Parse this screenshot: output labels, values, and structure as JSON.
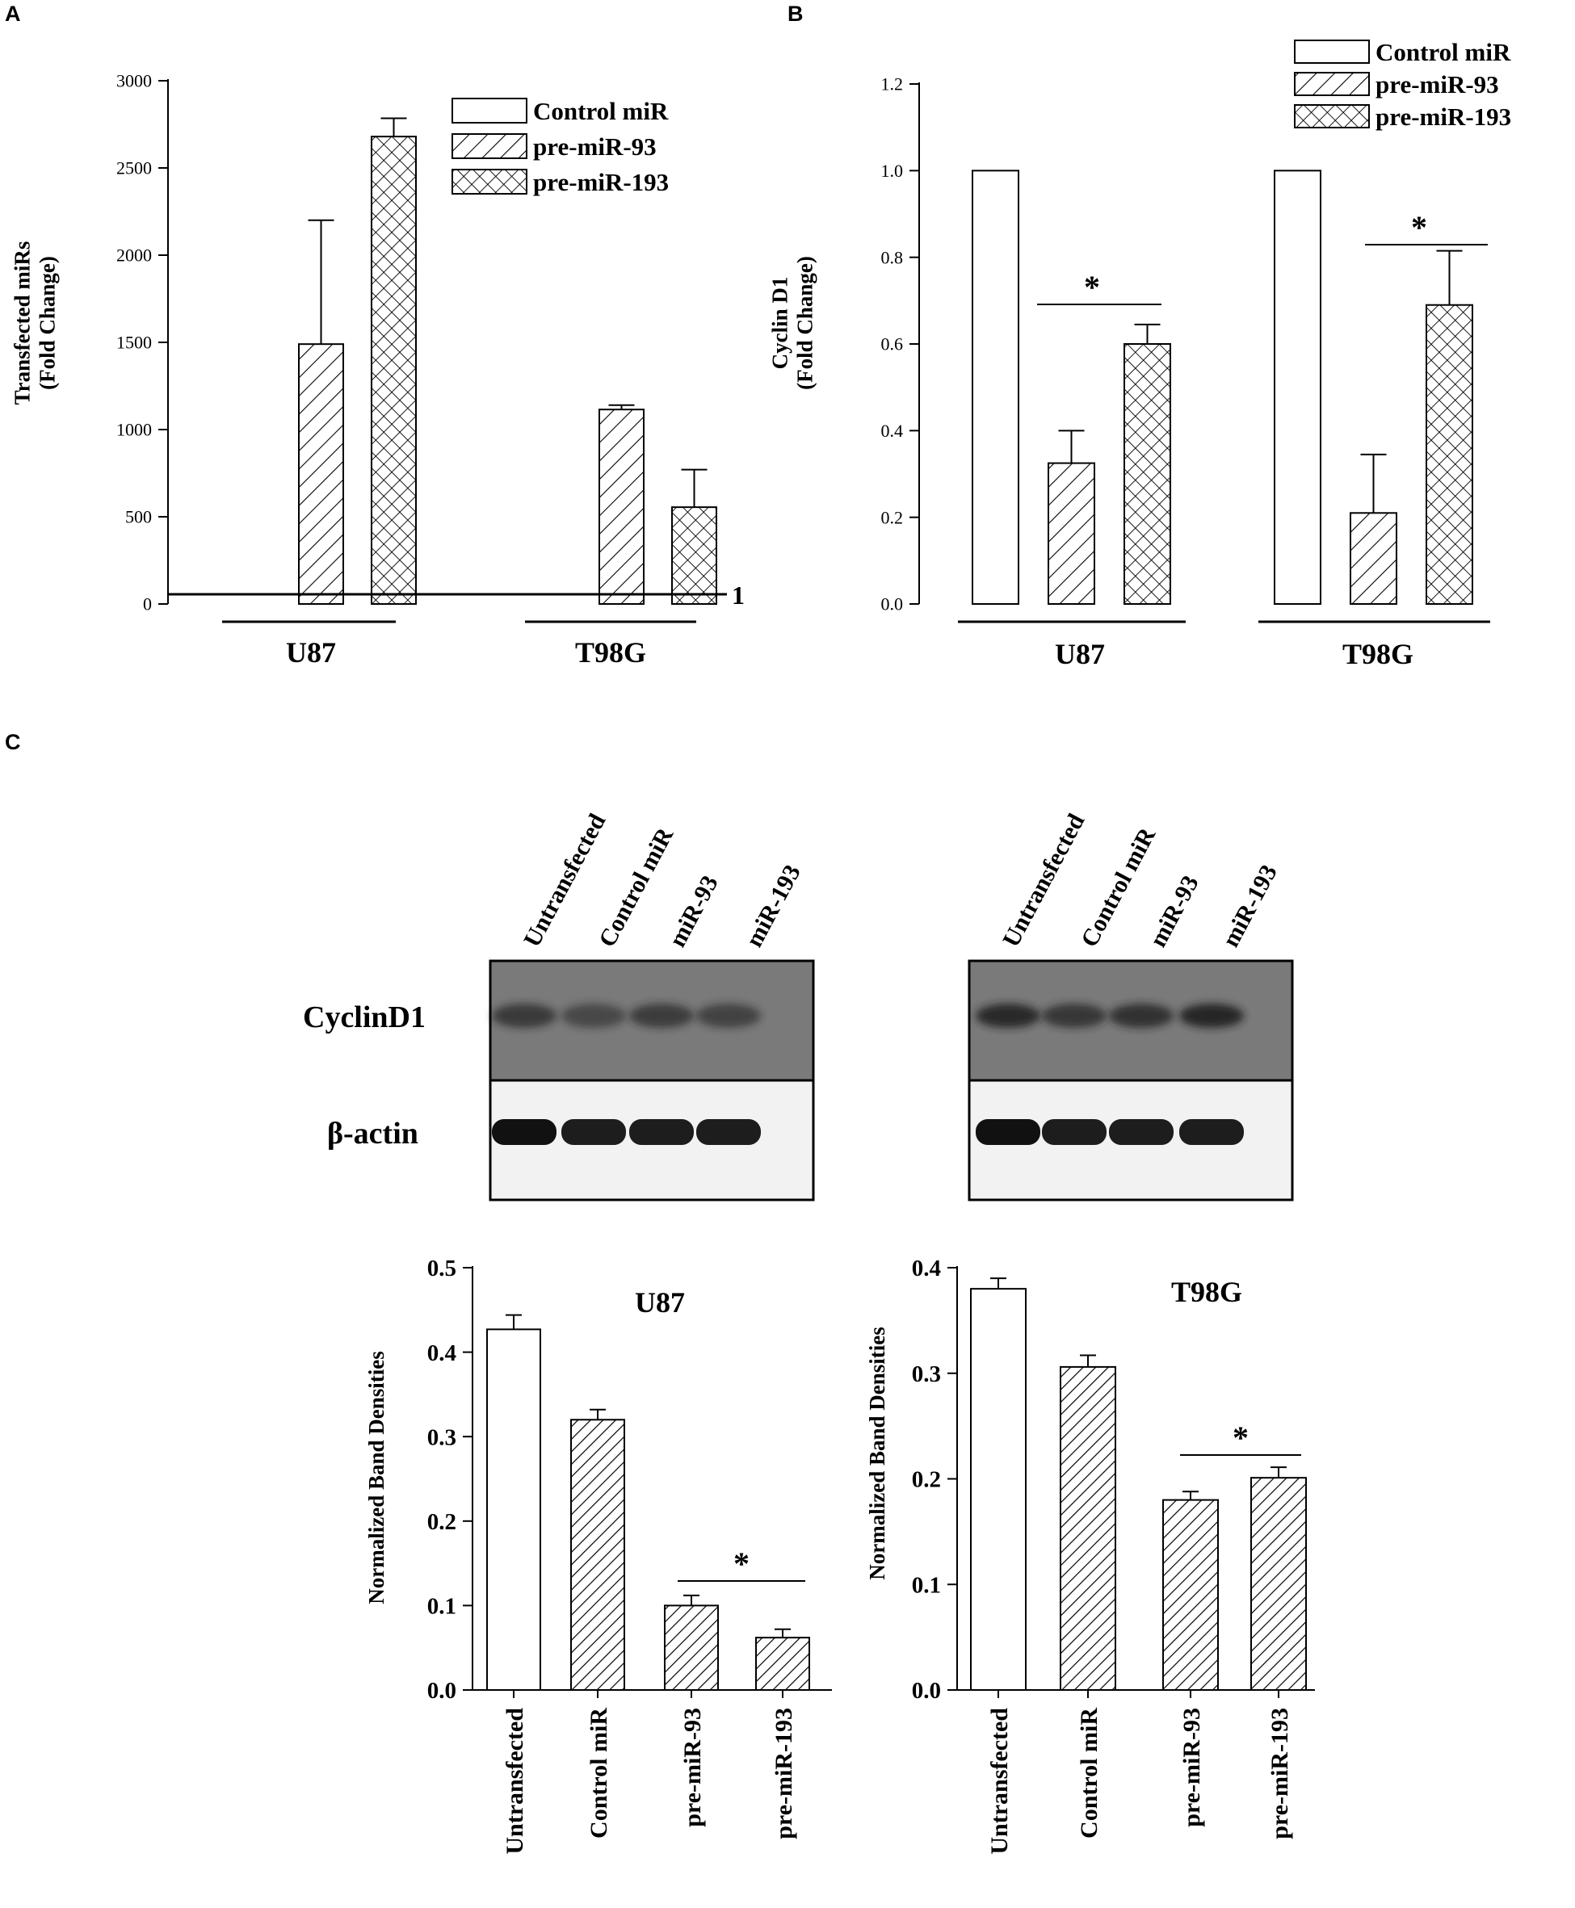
{
  "panel_labels": [
    "A",
    "B",
    "C"
  ],
  "legend": {
    "control": "Control miR",
    "mir93": "pre-miR-93",
    "mir193": "pre-miR-193"
  },
  "colors": {
    "ink": "#000000",
    "bar_fill": "#ffffff",
    "blot_bg": "#7a7a7a",
    "blot_band": "#1c1c1c",
    "actin_bg": "#f2f2f2",
    "actin_band": "#111111"
  },
  "chart_data": [
    {
      "id": "A",
      "type": "bar",
      "ylabel": [
        "Transfected miRs",
        "(Fold Change)"
      ],
      "ylim": [
        0,
        3000
      ],
      "yticks": [
        "0",
        "500",
        "1000",
        "1500",
        "2000",
        "2500",
        "3000"
      ],
      "groups": [
        "U87",
        "T98G"
      ],
      "baseline_label": "1",
      "baseline_value": 1,
      "series": [
        {
          "name": "Control miR",
          "pattern": "none",
          "values": [
            1,
            1
          ],
          "errors": [
            0,
            0
          ]
        },
        {
          "name": "pre-miR-93",
          "pattern": "hatch",
          "values": [
            1490,
            1115
          ],
          "errors": [
            710,
            25
          ]
        },
        {
          "name": "pre-miR-193",
          "pattern": "cross",
          "values": [
            2680,
            555
          ],
          "errors": [
            105,
            215
          ]
        }
      ],
      "legend_position": "top-right",
      "grid": false
    },
    {
      "id": "B",
      "type": "bar",
      "ylabel": [
        "Cyclin D1",
        "(Fold Change)"
      ],
      "ylim": [
        0,
        1.2
      ],
      "yticks": [
        "0.0",
        "0.2",
        "0.4",
        "0.6",
        "0.8",
        "1.0",
        "1.2"
      ],
      "groups": [
        "U87",
        "T98G"
      ],
      "series": [
        {
          "name": "Control miR",
          "pattern": "none",
          "values": [
            1.0,
            1.0
          ],
          "errors": [
            0,
            0
          ]
        },
        {
          "name": "pre-miR-93",
          "pattern": "hatch",
          "values": [
            0.325,
            0.21
          ],
          "errors": [
            0.075,
            0.135
          ]
        },
        {
          "name": "pre-miR-193",
          "pattern": "cross",
          "values": [
            0.6,
            0.69
          ],
          "errors": [
            0.045,
            0.125
          ]
        }
      ],
      "significance": [
        "*",
        "*"
      ],
      "legend_position": "top-right",
      "grid": false
    },
    {
      "id": "C-U87",
      "type": "bar",
      "title": "U87",
      "ylabel": [
        "Normalized Band Densities"
      ],
      "ylim": [
        0,
        0.5
      ],
      "yticks": [
        "0.0",
        "0.1",
        "0.2",
        "0.3",
        "0.4",
        "0.5"
      ],
      "categories": [
        "Untransfected",
        "Control miR",
        "pre-miR-93",
        "pre-miR-193"
      ],
      "patterns": [
        "none",
        "hatch",
        "hatch",
        "hatch"
      ],
      "values": [
        0.427,
        0.32,
        0.1,
        0.062
      ],
      "errors": [
        0.017,
        0.012,
        0.012,
        0.01
      ],
      "significance": "*",
      "grid": false
    },
    {
      "id": "C-T98G",
      "type": "bar",
      "title": "T98G",
      "ylabel": [
        "Normalized Band Densities"
      ],
      "ylim": [
        0,
        0.4
      ],
      "yticks": [
        "0.0",
        "0.1",
        "0.2",
        "0.3",
        "0.4"
      ],
      "categories": [
        "Untransfected",
        "Control miR",
        "pre-miR-93",
        "pre-miR-193"
      ],
      "patterns": [
        "none",
        "hatch",
        "hatch",
        "hatch"
      ],
      "values": [
        0.38,
        0.306,
        0.18,
        0.201
      ],
      "errors": [
        0.01,
        0.011,
        0.008,
        0.01
      ],
      "significance": "*",
      "grid": false
    }
  ],
  "western_blot": {
    "lanes": [
      "Untransfected",
      "Control miR",
      "miR-93",
      "miR-193"
    ],
    "rows": [
      "CyclinD1",
      "β-actin"
    ],
    "cyclin_intensity_u87": [
      0.55,
      0.3,
      0.5,
      0.4
    ],
    "cyclin_intensity_t98g": [
      0.85,
      0.6,
      0.7,
      0.9
    ],
    "actin_intensity_u87": [
      1,
      0.95,
      0.95,
      0.95
    ],
    "actin_intensity_t98g": [
      1,
      0.95,
      0.95,
      0.95
    ]
  }
}
